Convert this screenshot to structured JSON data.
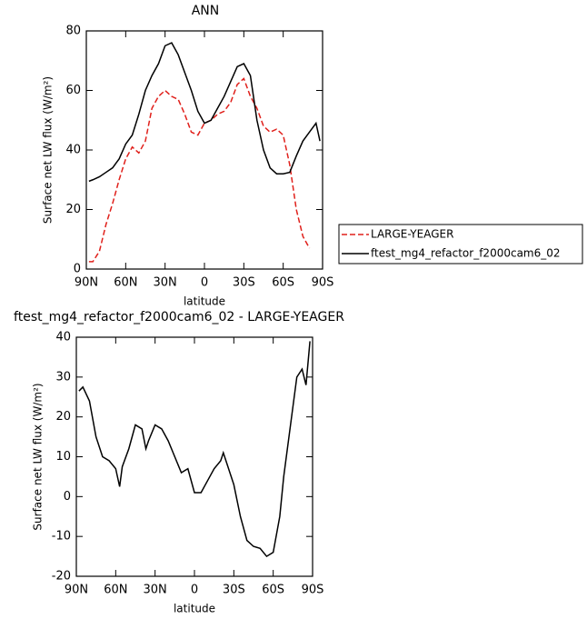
{
  "chart_data": [
    {
      "type": "line",
      "title": "ANN",
      "x_label": "latitude",
      "y_label": "Surface net LW flux (W/m²)",
      "x": [
        88,
        85,
        80,
        75,
        70,
        65,
        60,
        55,
        50,
        45,
        40,
        35,
        30,
        25,
        20,
        15,
        10,
        5,
        0,
        -5,
        -10,
        -15,
        -20,
        -25,
        -30,
        -35,
        -40,
        -45,
        -50,
        -55,
        -60,
        -65,
        -70,
        -75,
        -80,
        -85,
        -88
      ],
      "xlim": [
        90,
        -90
      ],
      "xticks": [
        {
          "value": 90,
          "label": "90N"
        },
        {
          "value": 60,
          "label": "60N"
        },
        {
          "value": 30,
          "label": "30N"
        },
        0,
        {
          "value": -30,
          "label": "30S"
        },
        {
          "value": -60,
          "label": "60S"
        },
        {
          "value": -90,
          "label": "90S"
        }
      ],
      "ylim": [
        0,
        80
      ],
      "yticks": [
        0,
        20,
        40,
        60,
        80
      ],
      "legend": "right",
      "series": [
        {
          "name": "LARGE-YEAGER",
          "color": "#e0201b",
          "dashed": true,
          "values": [
            2.5,
            2.5,
            6,
            15,
            22,
            30,
            37,
            41,
            39,
            43,
            54,
            58,
            60,
            58,
            57,
            52,
            46,
            45,
            49,
            50,
            52,
            53,
            56,
            62,
            64,
            58,
            54,
            48,
            46,
            47,
            45,
            35,
            20,
            11,
            7,
            null,
            null
          ]
        },
        {
          "name": "ftest_mg4_refactor_f2000cam6_02",
          "color": "#000000",
          "dashed": false,
          "values": [
            29.5,
            30,
            31,
            32.5,
            34,
            37,
            42,
            45,
            52,
            60,
            65,
            69,
            75,
            76,
            72,
            66,
            60,
            53,
            49,
            50,
            54,
            58,
            63,
            68,
            69,
            65,
            50,
            40,
            34,
            32,
            32,
            32.5,
            38,
            43,
            46,
            49,
            43
          ]
        }
      ]
    },
    {
      "type": "line",
      "title": "ftest_mg4_refactor_f2000cam6_02 - LARGE-YEAGER",
      "x_label": "latitude",
      "y_label": "Surface net LW flux (W/m²)",
      "x": [
        88,
        85,
        80,
        75,
        70,
        65,
        60,
        57,
        55,
        50,
        45,
        40,
        37,
        35,
        30,
        25,
        20,
        15,
        10,
        5,
        0,
        -5,
        -10,
        -15,
        -20,
        -22,
        -25,
        -30,
        -35,
        -40,
        -45,
        -50,
        -55,
        -60,
        -65,
        -68,
        -72,
        -78,
        -82,
        -85,
        -88
      ],
      "xlim": [
        90,
        -90
      ],
      "xticks": [
        {
          "value": 90,
          "label": "90N"
        },
        {
          "value": 60,
          "label": "60N"
        },
        {
          "value": 30,
          "label": "30N"
        },
        0,
        {
          "value": -30,
          "label": "30S"
        },
        {
          "value": -60,
          "label": "60S"
        },
        {
          "value": -90,
          "label": "90S"
        }
      ],
      "ylim": [
        -20,
        40
      ],
      "yticks": [
        -20,
        -10,
        0,
        10,
        20,
        30,
        40
      ],
      "series": [
        {
          "color": "#000000",
          "dashed": false,
          "values": [
            26.5,
            27.5,
            24,
            15,
            10,
            9,
            7,
            2.5,
            7.5,
            12,
            18,
            17,
            12,
            14,
            18,
            17,
            14,
            10,
            6,
            7,
            1,
            1,
            4,
            7,
            9,
            11,
            8,
            3,
            -5,
            -11,
            -12.5,
            -13,
            -15,
            -14,
            -5,
            5,
            15,
            30,
            32,
            28,
            39
          ]
        }
      ]
    }
  ]
}
